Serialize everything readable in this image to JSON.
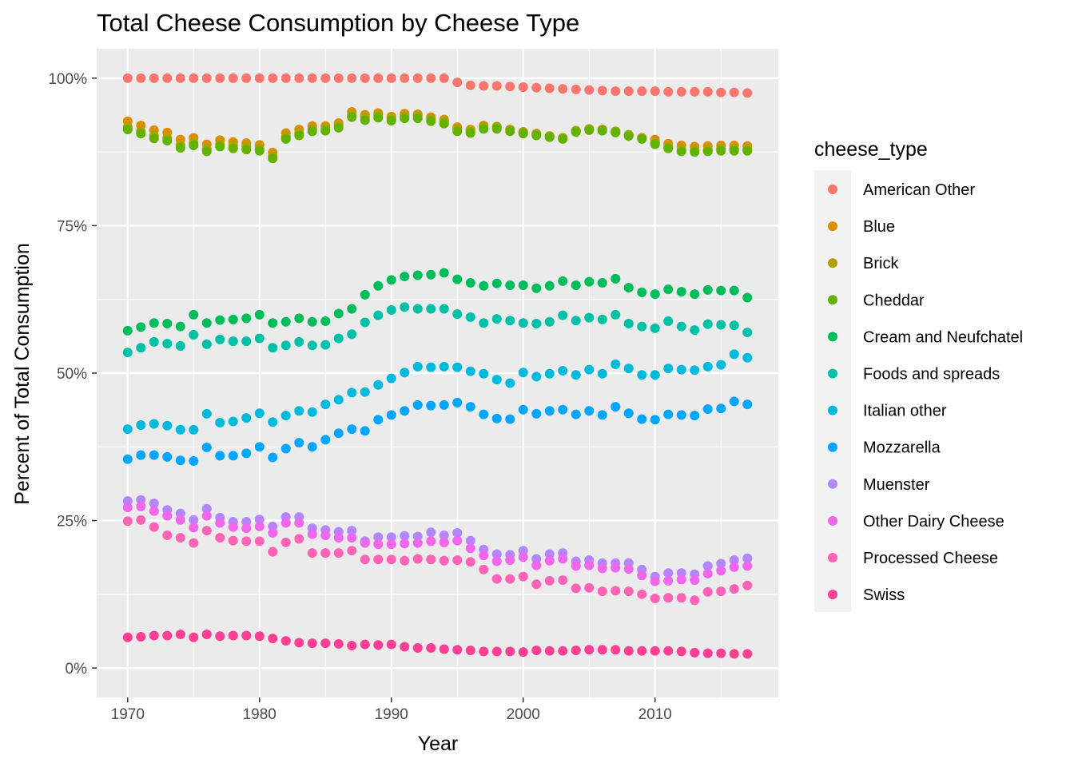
{
  "chart_data": {
    "type": "scatter",
    "title": "Total Cheese Consumption by Cheese Type",
    "xlabel": "Year",
    "ylabel": "Percent of Total Consumption",
    "xlim": [
      1967.65,
      2019.35
    ],
    "ylim": [
      -0.05,
      1.05
    ],
    "x_ticks": [
      1970,
      1980,
      1990,
      2000,
      2010
    ],
    "x_tick_labels": [
      "1970",
      "1980",
      "1990",
      "2000",
      "2010"
    ],
    "y_ticks": [
      0,
      0.25,
      0.5,
      0.75,
      1.0
    ],
    "y_tick_labels": [
      "0%",
      "25%",
      "50%",
      "75%",
      "100%"
    ],
    "grid": true,
    "background": "#EBEBEB",
    "gridline_color": "#FFFFFF",
    "legend": {
      "title": "cheese_type",
      "placement": "right"
    },
    "x": [
      1970,
      1971,
      1972,
      1973,
      1974,
      1975,
      1976,
      1977,
      1978,
      1979,
      1980,
      1981,
      1982,
      1983,
      1984,
      1985,
      1986,
      1987,
      1988,
      1989,
      1990,
      1991,
      1992,
      1993,
      1994,
      1995,
      1996,
      1997,
      1998,
      1999,
      2000,
      2001,
      2002,
      2003,
      2004,
      2005,
      2006,
      2007,
      2008,
      2009,
      2010,
      2011,
      2012,
      2013,
      2014,
      2015,
      2016,
      2017
    ],
    "series": [
      {
        "name": "American Other",
        "color": "#F8766D",
        "values": [
          1.0,
          1.0,
          1.0,
          1.0,
          1.0,
          1.0,
          1.0,
          1.0,
          1.0,
          1.0,
          1.0,
          1.0,
          1.0,
          1.0,
          1.0,
          1.0,
          1.0,
          1.0,
          1.0,
          1.0,
          1.0,
          1.0,
          1.0,
          1.0,
          1.0,
          0.993,
          0.988,
          0.987,
          0.987,
          0.986,
          0.985,
          0.984,
          0.983,
          0.982,
          0.981,
          0.98,
          0.979,
          0.978,
          0.978,
          0.978,
          0.978,
          0.977,
          0.977,
          0.977,
          0.977,
          0.976,
          0.976,
          0.975
        ]
      },
      {
        "name": "Blue",
        "color": "#DB8E00",
        "values": [
          0.927,
          0.92,
          0.912,
          0.908,
          0.896,
          0.899,
          0.888,
          0.895,
          0.892,
          0.89,
          0.887,
          0.874,
          0.907,
          0.913,
          0.919,
          0.919,
          0.924,
          0.943,
          0.938,
          0.941,
          0.935,
          0.94,
          0.939,
          0.934,
          0.93,
          0.917,
          0.913,
          0.92,
          0.918,
          0.913,
          0.909,
          0.906,
          0.902,
          0.899,
          0.911,
          0.914,
          0.913,
          0.91,
          0.904,
          0.899,
          0.896,
          0.889,
          0.886,
          0.884,
          0.885,
          0.886,
          0.886,
          0.885
        ]
      },
      {
        "name": "Brick",
        "color": "#AEA200",
        "values": [
          0.917,
          0.91,
          0.903,
          0.899,
          0.887,
          0.89,
          0.88,
          0.888,
          0.886,
          0.884,
          0.881,
          0.868,
          0.901,
          0.907,
          0.914,
          0.915,
          0.92,
          0.938,
          0.934,
          0.938,
          0.932,
          0.936,
          0.936,
          0.931,
          0.927,
          0.914,
          0.911,
          0.918,
          0.918,
          0.913,
          0.909,
          0.906,
          0.902,
          0.899,
          0.911,
          0.914,
          0.913,
          0.91,
          0.904,
          0.899,
          0.891,
          0.883,
          0.879,
          0.878,
          0.879,
          0.88,
          0.88,
          0.88
        ]
      },
      {
        "name": "Cheddar",
        "color": "#64B200",
        "values": [
          0.913,
          0.906,
          0.898,
          0.894,
          0.882,
          0.886,
          0.876,
          0.884,
          0.881,
          0.879,
          0.877,
          0.864,
          0.897,
          0.903,
          0.91,
          0.911,
          0.916,
          0.934,
          0.929,
          0.933,
          0.928,
          0.932,
          0.932,
          0.927,
          0.923,
          0.91,
          0.907,
          0.914,
          0.914,
          0.91,
          0.906,
          0.903,
          0.9,
          0.897,
          0.909,
          0.912,
          0.911,
          0.908,
          0.902,
          0.897,
          0.888,
          0.881,
          0.876,
          0.875,
          0.876,
          0.877,
          0.877,
          0.877
        ]
      },
      {
        "name": "Cream and Neufchatel",
        "color": "#00BD5C",
        "values": [
          0.572,
          0.578,
          0.585,
          0.584,
          0.579,
          0.599,
          0.585,
          0.59,
          0.591,
          0.593,
          0.599,
          0.585,
          0.587,
          0.593,
          0.587,
          0.588,
          0.601,
          0.609,
          0.633,
          0.648,
          0.658,
          0.664,
          0.666,
          0.667,
          0.67,
          0.659,
          0.653,
          0.648,
          0.652,
          0.649,
          0.649,
          0.644,
          0.648,
          0.656,
          0.649,
          0.655,
          0.653,
          0.66,
          0.645,
          0.637,
          0.634,
          0.642,
          0.638,
          0.634,
          0.641,
          0.64,
          0.64,
          0.628
        ]
      },
      {
        "name": "Foods and spreads",
        "color": "#00C1A7",
        "values": [
          0.535,
          0.543,
          0.553,
          0.55,
          0.546,
          0.565,
          0.549,
          0.557,
          0.554,
          0.554,
          0.559,
          0.543,
          0.547,
          0.553,
          0.547,
          0.548,
          0.559,
          0.566,
          0.586,
          0.598,
          0.607,
          0.612,
          0.609,
          0.609,
          0.609,
          0.6,
          0.595,
          0.585,
          0.592,
          0.589,
          0.585,
          0.584,
          0.587,
          0.598,
          0.589,
          0.594,
          0.591,
          0.599,
          0.584,
          0.579,
          0.576,
          0.588,
          0.579,
          0.573,
          0.583,
          0.582,
          0.581,
          0.569
        ]
      },
      {
        "name": "Italian other",
        "color": "#00BADE",
        "values": [
          0.405,
          0.412,
          0.414,
          0.411,
          0.404,
          0.404,
          0.431,
          0.416,
          0.418,
          0.424,
          0.432,
          0.417,
          0.428,
          0.436,
          0.434,
          0.447,
          0.455,
          0.467,
          0.468,
          0.48,
          0.491,
          0.501,
          0.511,
          0.51,
          0.511,
          0.51,
          0.503,
          0.499,
          0.489,
          0.483,
          0.501,
          0.494,
          0.499,
          0.504,
          0.497,
          0.506,
          0.499,
          0.515,
          0.508,
          0.497,
          0.497,
          0.508,
          0.506,
          0.505,
          0.511,
          0.514,
          0.532,
          0.526
        ]
      },
      {
        "name": "Mozzarella",
        "color": "#00A6FF",
        "values": [
          0.354,
          0.361,
          0.361,
          0.358,
          0.352,
          0.351,
          0.374,
          0.36,
          0.36,
          0.364,
          0.375,
          0.357,
          0.372,
          0.382,
          0.375,
          0.387,
          0.398,
          0.405,
          0.402,
          0.421,
          0.429,
          0.436,
          0.446,
          0.445,
          0.446,
          0.45,
          0.443,
          0.43,
          0.423,
          0.422,
          0.438,
          0.431,
          0.436,
          0.438,
          0.43,
          0.436,
          0.429,
          0.443,
          0.432,
          0.422,
          0.421,
          0.43,
          0.429,
          0.428,
          0.439,
          0.44,
          0.452,
          0.447
        ]
      },
      {
        "name": "Muenster",
        "color": "#B385FF",
        "values": [
          0.272,
          0.274,
          0.266,
          0.258,
          0.251,
          0.238,
          0.258,
          0.246,
          0.239,
          0.237,
          0.24,
          0.229,
          0.246,
          0.246,
          0.227,
          0.225,
          0.221,
          0.221,
          0.212,
          0.21,
          0.21,
          0.211,
          0.212,
          0.215,
          0.213,
          0.216,
          0.203,
          0.191,
          0.181,
          0.183,
          0.188,
          0.174,
          0.182,
          0.185,
          0.173,
          0.174,
          0.169,
          0.17,
          0.168,
          0.157,
          0.147,
          0.148,
          0.15,
          0.149,
          0.16,
          0.165,
          0.171,
          0.173
        ]
      },
      {
        "name": "Other Dairy Cheese",
        "color": "#EF67EB",
        "values": [
          0.249,
          0.251,
          0.239,
          0.225,
          0.221,
          0.212,
          0.233,
          0.221,
          0.216,
          0.215,
          0.215,
          0.197,
          0.213,
          0.219,
          0.195,
          0.195,
          0.195,
          0.199,
          0.184,
          0.184,
          0.184,
          0.182,
          0.185,
          0.184,
          0.182,
          0.183,
          0.18,
          0.167,
          0.151,
          0.151,
          0.155,
          0.142,
          0.148,
          0.149,
          0.135,
          0.136,
          0.13,
          0.131,
          0.13,
          0.125,
          0.118,
          0.119,
          0.119,
          0.115,
          0.129,
          0.13,
          0.134,
          0.14
        ]
      },
      {
        "name": "Processed Cheese",
        "color": "#FF63B6",
        "values": [
          0.052,
          0.053,
          0.055,
          0.055,
          0.057,
          0.052,
          0.057,
          0.054,
          0.055,
          0.055,
          0.054,
          0.05,
          0.046,
          0.043,
          0.042,
          0.042,
          0.041,
          0.038,
          0.04,
          0.039,
          0.04,
          0.036,
          0.034,
          0.034,
          0.032,
          0.031,
          0.03,
          0.028,
          0.028,
          0.028,
          0.027,
          0.03,
          0.029,
          0.029,
          0.03,
          0.031,
          0.031,
          0.031,
          0.029,
          0.029,
          0.029,
          0.029,
          0.028,
          0.026,
          0.025,
          0.025,
          0.024,
          0.024
        ]
      },
      {
        "name": "Swiss",
        "color": "#FF3E96",
        "values": [
          0.052,
          0.053,
          0.055,
          0.055,
          0.057,
          0.052,
          0.057,
          0.054,
          0.055,
          0.055,
          0.054,
          0.05,
          0.046,
          0.043,
          0.042,
          0.042,
          0.041,
          0.038,
          0.04,
          0.039,
          0.04,
          0.036,
          0.034,
          0.034,
          0.032,
          0.031,
          0.03,
          0.028,
          0.028,
          0.028,
          0.027,
          0.03,
          0.029,
          0.029,
          0.03,
          0.031,
          0.031,
          0.031,
          0.029,
          0.029,
          0.029,
          0.029,
          0.028,
          0.026,
          0.025,
          0.025,
          0.024,
          0.024
        ]
      }
    ]
  },
  "muenster_points": [
    0.283,
    0.285,
    0.279,
    0.268,
    0.262,
    0.251,
    0.27,
    0.255,
    0.248,
    0.248,
    0.252,
    0.24,
    0.256,
    0.256,
    0.237,
    0.234,
    0.231,
    0.233,
    0.215,
    0.222,
    0.222,
    0.224,
    0.223,
    0.23,
    0.225,
    0.229,
    0.216,
    0.201,
    0.193,
    0.192,
    0.199,
    0.185,
    0.193,
    0.195,
    0.181,
    0.183,
    0.178,
    0.178,
    0.178,
    0.167,
    0.155,
    0.161,
    0.161,
    0.159,
    0.173,
    0.177,
    0.183,
    0.186
  ]
}
